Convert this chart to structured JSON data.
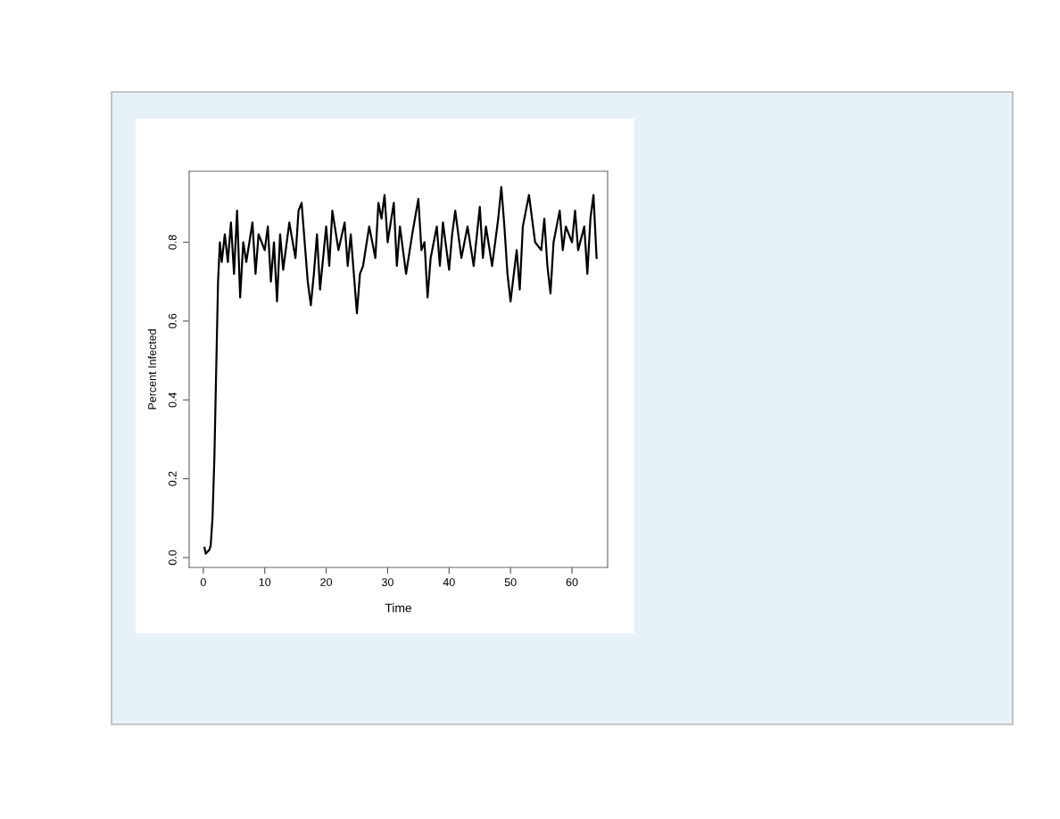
{
  "chart_data": {
    "type": "line",
    "xlabel": "Time",
    "ylabel": "Percent Infected",
    "x": [
      0.2,
      0.4,
      1.0,
      1.2,
      1.5,
      1.8,
      2.0,
      2.2,
      2.4,
      2.7,
      3.0,
      3.5,
      4,
      4.5,
      5,
      5.5,
      6,
      6.5,
      7,
      8,
      8.5,
      9,
      10,
      10.5,
      11,
      11.5,
      12,
      12.5,
      13,
      14,
      15,
      15.5,
      16,
      16.5,
      17,
      17.5,
      18,
      18.5,
      19,
      20,
      20.5,
      21,
      22,
      23,
      23.5,
      24,
      25,
      25.5,
      26,
      27,
      28,
      28.5,
      29,
      29.5,
      30,
      31,
      31.5,
      32,
      33,
      34,
      35,
      35.5,
      36,
      36.5,
      37,
      38,
      38.5,
      39,
      40,
      40.5,
      41,
      42,
      43,
      44,
      45,
      45.5,
      46,
      47,
      48,
      48.5,
      49,
      49.5,
      50,
      51,
      51.5,
      52,
      53,
      54,
      55,
      55.5,
      56,
      56.5,
      57,
      58,
      58.5,
      59,
      60,
      60.5,
      61,
      62,
      62.5,
      63,
      63.5,
      64
    ],
    "series": [
      {
        "color": "#000000",
        "values": [
          0.025,
          0.01,
          0.02,
          0.03,
          0.1,
          0.25,
          0.4,
          0.55,
          0.7,
          0.8,
          0.75,
          0.82,
          0.75,
          0.85,
          0.72,
          0.88,
          0.66,
          0.8,
          0.75,
          0.85,
          0.72,
          0.82,
          0.78,
          0.84,
          0.7,
          0.8,
          0.65,
          0.82,
          0.73,
          0.85,
          0.76,
          0.88,
          0.9,
          0.8,
          0.7,
          0.64,
          0.72,
          0.82,
          0.68,
          0.84,
          0.74,
          0.88,
          0.78,
          0.85,
          0.74,
          0.82,
          0.62,
          0.72,
          0.74,
          0.84,
          0.76,
          0.9,
          0.86,
          0.92,
          0.8,
          0.9,
          0.74,
          0.84,
          0.72,
          0.82,
          0.91,
          0.78,
          0.8,
          0.66,
          0.76,
          0.84,
          0.74,
          0.85,
          0.73,
          0.82,
          0.88,
          0.76,
          0.84,
          0.74,
          0.89,
          0.76,
          0.84,
          0.74,
          0.86,
          0.94,
          0.84,
          0.72,
          0.65,
          0.78,
          0.68,
          0.84,
          0.92,
          0.8,
          0.78,
          0.86,
          0.74,
          0.67,
          0.8,
          0.88,
          0.78,
          0.84,
          0.8,
          0.88,
          0.78,
          0.84,
          0.72,
          0.86,
          0.92,
          0.76
        ]
      }
    ],
    "xlim": [
      -2.3,
      65.8
    ],
    "ylim": [
      -0.025,
      0.98
    ],
    "xticks": [
      0,
      10,
      20,
      30,
      40,
      50,
      60
    ],
    "yticks": [
      {
        "value": 0,
        "label": "0.0"
      },
      {
        "value": 0.2,
        "label": "0.2"
      },
      {
        "value": 0.4,
        "label": "0.4"
      },
      {
        "value": 0.6,
        "label": "0.6"
      },
      {
        "value": 0.8,
        "label": "0.8"
      }
    ],
    "grid": false,
    "line_style": "solid",
    "marker": "none"
  }
}
